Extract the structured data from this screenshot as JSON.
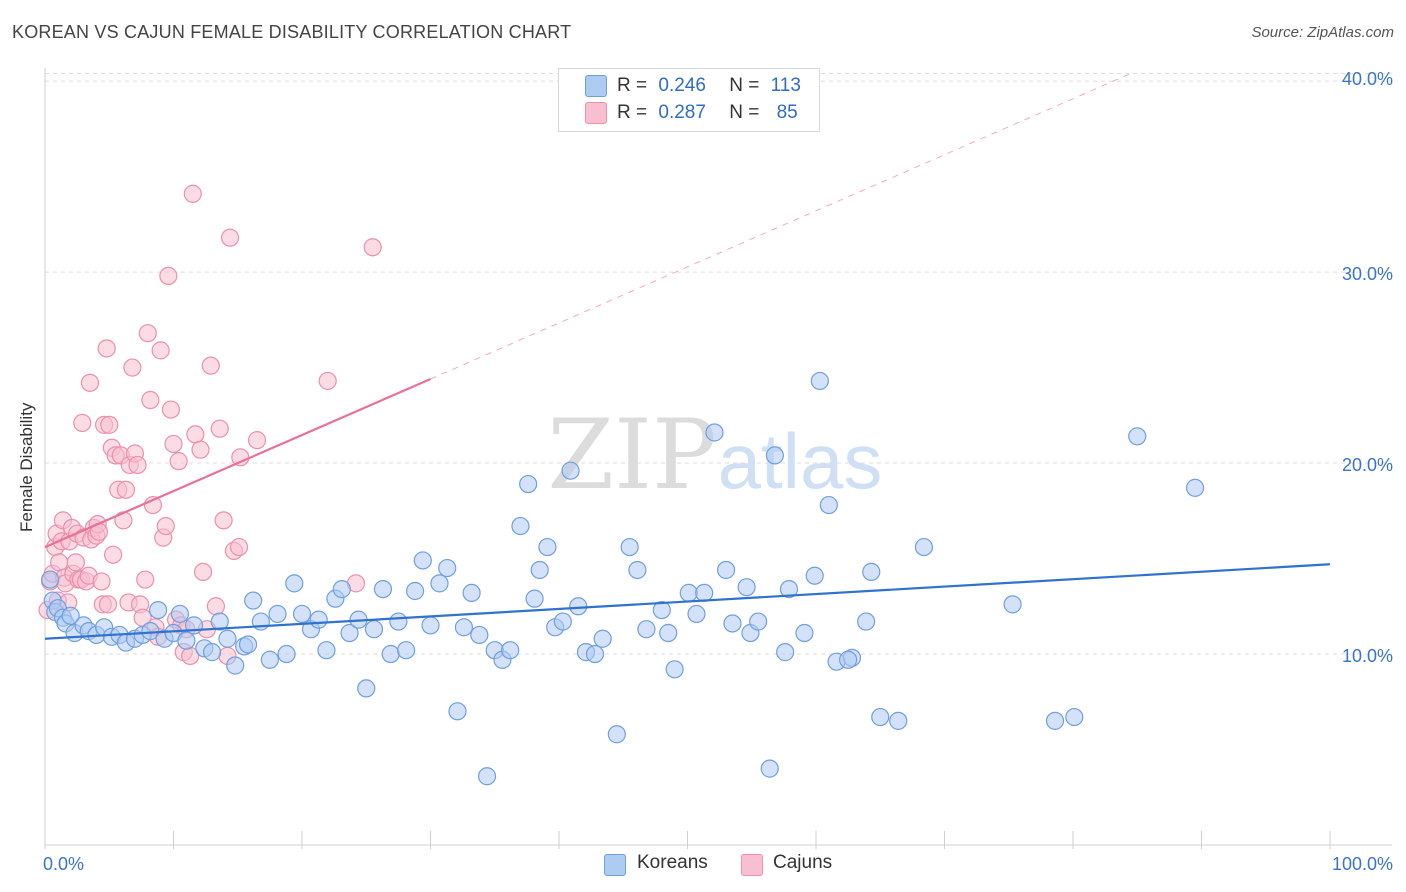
{
  "header": {
    "title": "KOREAN VS CAJUN FEMALE DISABILITY CORRELATION CHART",
    "source": "Source: ZipAtlas.com"
  },
  "watermark": {
    "zip": "ZIP",
    "atlas": "atlas"
  },
  "legend": {
    "koreans": {
      "r_label": "R =",
      "r_value": "0.246",
      "n_label": "N =",
      "n_value": "113"
    },
    "cajuns": {
      "r_label": "R =",
      "r_value": "0.287",
      "n_label": "N =",
      "n_value": "85"
    }
  },
  "colors": {
    "koreans_fill": "#aecbf2",
    "koreans_stroke": "#6f9fdf",
    "koreans_line": "#2f72d0",
    "cajuns_fill": "#f7bfd0",
    "cajuns_stroke": "#ee8fac",
    "cajuns_line": "#e8709a",
    "axis_text": "#3a74c9",
    "grid": "#dddddd"
  },
  "chart_data": {
    "type": "scatter",
    "title": "KOREAN VS CAJUN FEMALE DISABILITY CORRELATION CHART",
    "xlabel": "",
    "ylabel": "Female Disability",
    "xlim": [
      0,
      100
    ],
    "ylim": [
      0,
      41
    ],
    "x_tick_labels": [
      "0.0%",
      "100.0%"
    ],
    "y_ticks": [
      10,
      20,
      30,
      40
    ],
    "y_tick_labels": [
      "10.0%",
      "20.0%",
      "30.0%",
      "40.0%"
    ],
    "grid": true,
    "legend_position": "top-center",
    "series": [
      {
        "name": "Koreans",
        "r": 0.246,
        "n": 113,
        "trend": {
          "x": [
            0,
            100
          ],
          "y": [
            10.8,
            14.7
          ],
          "dashed_from": null
        },
        "points": [
          [
            0.4,
            13.9
          ],
          [
            0.6,
            12.8
          ],
          [
            0.8,
            12.2
          ],
          [
            1,
            12.4
          ],
          [
            1.4,
            11.9
          ],
          [
            1.6,
            11.6
          ],
          [
            2,
            12
          ],
          [
            2.3,
            11.1
          ],
          [
            3,
            11.5
          ],
          [
            3.4,
            11.2
          ],
          [
            4,
            11
          ],
          [
            4.6,
            11.4
          ],
          [
            5.2,
            10.9
          ],
          [
            5.8,
            11
          ],
          [
            6.3,
            10.6
          ],
          [
            7,
            10.8
          ],
          [
            7.6,
            11
          ],
          [
            8.2,
            11.2
          ],
          [
            8.8,
            12.3
          ],
          [
            9.3,
            10.8
          ],
          [
            10,
            11.1
          ],
          [
            10.5,
            12.1
          ],
          [
            11,
            10.7
          ],
          [
            11.6,
            11.5
          ],
          [
            12.4,
            10.3
          ],
          [
            13,
            10.1
          ],
          [
            13.6,
            11.7
          ],
          [
            14.2,
            10.8
          ],
          [
            14.8,
            9.4
          ],
          [
            15.5,
            10.4
          ],
          [
            16.2,
            12.8
          ],
          [
            16.8,
            11.7
          ],
          [
            17.5,
            9.7
          ],
          [
            18.1,
            12.1
          ],
          [
            18.8,
            10
          ],
          [
            19.4,
            13.7
          ],
          [
            20,
            12.1
          ],
          [
            20.7,
            11.3
          ],
          [
            21.3,
            11.8
          ],
          [
            21.9,
            10.2
          ],
          [
            22.6,
            12.9
          ],
          [
            23.1,
            13.4
          ],
          [
            23.7,
            11.1
          ],
          [
            24.4,
            11.8
          ],
          [
            25,
            8.2
          ],
          [
            25.6,
            11.3
          ],
          [
            26.3,
            13.4
          ],
          [
            26.9,
            10
          ],
          [
            27.5,
            11.7
          ],
          [
            28.1,
            10.2
          ],
          [
            28.8,
            13.3
          ],
          [
            29.4,
            14.9
          ],
          [
            30,
            11.5
          ],
          [
            30.7,
            13.7
          ],
          [
            31.3,
            14.5
          ],
          [
            32.1,
            7
          ],
          [
            32.6,
            11.4
          ],
          [
            33.2,
            13.2
          ],
          [
            33.8,
            11
          ],
          [
            34.4,
            3.6
          ],
          [
            35,
            10.2
          ],
          [
            35.6,
            9.7
          ],
          [
            36.2,
            10.2
          ],
          [
            37,
            16.7
          ],
          [
            37.6,
            18.9
          ],
          [
            38.1,
            12.9
          ],
          [
            38.5,
            14.4
          ],
          [
            39.1,
            15.6
          ],
          [
            39.7,
            11.4
          ],
          [
            40.3,
            11.7
          ],
          [
            40.9,
            19.6
          ],
          [
            41.5,
            12.5
          ],
          [
            42.1,
            10.1
          ],
          [
            42.8,
            10
          ],
          [
            43.4,
            10.8
          ],
          [
            44.5,
            5.8
          ],
          [
            45.5,
            15.6
          ],
          [
            46.1,
            14.4
          ],
          [
            46.8,
            11.3
          ],
          [
            48,
            12.3
          ],
          [
            48.5,
            11.1
          ],
          [
            49,
            9.2
          ],
          [
            50.1,
            13.2
          ],
          [
            50.7,
            12.1
          ],
          [
            51.3,
            13.2
          ],
          [
            52.1,
            21.6
          ],
          [
            53,
            14.4
          ],
          [
            53.5,
            11.6
          ],
          [
            54.6,
            13.5
          ],
          [
            54.9,
            11.1
          ],
          [
            55.5,
            11.7
          ],
          [
            56.4,
            4
          ],
          [
            56.8,
            20.4
          ],
          [
            57.6,
            10.1
          ],
          [
            57.9,
            13.4
          ],
          [
            59.1,
            11.1
          ],
          [
            59.9,
            14.1
          ],
          [
            60.3,
            24.3
          ],
          [
            61,
            17.8
          ],
          [
            61.6,
            9.6
          ],
          [
            62.8,
            9.8
          ],
          [
            63.9,
            11.7
          ],
          [
            64.3,
            14.3
          ],
          [
            65,
            6.7
          ],
          [
            66.4,
            6.5
          ],
          [
            68.4,
            15.6
          ],
          [
            75.3,
            12.6
          ],
          [
            78.6,
            6.5
          ],
          [
            80.1,
            6.7
          ],
          [
            85,
            21.4
          ],
          [
            89.5,
            18.7
          ],
          [
            62.5,
            9.7
          ],
          [
            15.8,
            10.5
          ]
        ]
      },
      {
        "name": "Cajuns",
        "r": 0.287,
        "n": 85,
        "trend": {
          "x": [
            0,
            30
          ],
          "y": [
            15.6,
            24.4
          ],
          "dashed_to": [
            84.5,
            40.4
          ]
        },
        "points": [
          [
            0.2,
            12.3
          ],
          [
            0.4,
            13.8
          ],
          [
            0.6,
            14.2
          ],
          [
            0.8,
            15.6
          ],
          [
            0.9,
            16.3
          ],
          [
            1,
            12.8
          ],
          [
            1.1,
            14.8
          ],
          [
            1.3,
            15.9
          ],
          [
            1.4,
            17
          ],
          [
            1.5,
            14
          ],
          [
            1.6,
            13.7
          ],
          [
            1.8,
            12.7
          ],
          [
            1.9,
            15.9
          ],
          [
            2.1,
            16.6
          ],
          [
            2.2,
            14.2
          ],
          [
            2.4,
            14.8
          ],
          [
            2.5,
            16.3
          ],
          [
            2.6,
            13.9
          ],
          [
            2.8,
            13.9
          ],
          [
            2.9,
            22.1
          ],
          [
            3,
            16.1
          ],
          [
            3.2,
            13.8
          ],
          [
            3.4,
            14.1
          ],
          [
            3.5,
            24.2
          ],
          [
            3.6,
            16
          ],
          [
            3.8,
            16.6
          ],
          [
            4,
            16.2
          ],
          [
            4.1,
            16.8
          ],
          [
            4.2,
            16.4
          ],
          [
            4.4,
            13.8
          ],
          [
            4.5,
            12.6
          ],
          [
            4.6,
            22
          ],
          [
            4.8,
            26
          ],
          [
            4.9,
            12.6
          ],
          [
            5,
            22
          ],
          [
            5.2,
            20.8
          ],
          [
            5.3,
            15.2
          ],
          [
            5.5,
            20.4
          ],
          [
            5.7,
            18.6
          ],
          [
            5.9,
            20.4
          ],
          [
            6.1,
            17
          ],
          [
            6.3,
            18.6
          ],
          [
            6.5,
            12.7
          ],
          [
            6.6,
            19.9
          ],
          [
            6.8,
            25
          ],
          [
            7,
            20.5
          ],
          [
            7.2,
            19.9
          ],
          [
            7.4,
            12.6
          ],
          [
            7.6,
            11.9
          ],
          [
            7.8,
            13.9
          ],
          [
            8,
            26.8
          ],
          [
            8.2,
            23.3
          ],
          [
            8.4,
            17.8
          ],
          [
            8.6,
            11.4
          ],
          [
            8.8,
            10.9
          ],
          [
            9,
            25.9
          ],
          [
            9.2,
            16.1
          ],
          [
            9.4,
            16.7
          ],
          [
            9.6,
            29.8
          ],
          [
            9.8,
            22.8
          ],
          [
            10,
            21
          ],
          [
            10.2,
            11.8
          ],
          [
            10.4,
            20.1
          ],
          [
            10.6,
            11.5
          ],
          [
            10.8,
            10.1
          ],
          [
            11,
            11.3
          ],
          [
            11.3,
            9.9
          ],
          [
            11.5,
            34.1
          ],
          [
            11.7,
            21.5
          ],
          [
            12.1,
            20.7
          ],
          [
            12.3,
            14.3
          ],
          [
            12.6,
            11.3
          ],
          [
            12.9,
            25.1
          ],
          [
            13.3,
            12.5
          ],
          [
            13.6,
            21.8
          ],
          [
            13.9,
            17
          ],
          [
            14.2,
            9.9
          ],
          [
            14.4,
            31.8
          ],
          [
            14.7,
            15.4
          ],
          [
            15.1,
            15.6
          ],
          [
            15.2,
            20.3
          ],
          [
            16.5,
            21.2
          ],
          [
            22,
            24.3
          ],
          [
            24.2,
            13.7
          ],
          [
            25.5,
            31.3
          ]
        ]
      }
    ]
  }
}
